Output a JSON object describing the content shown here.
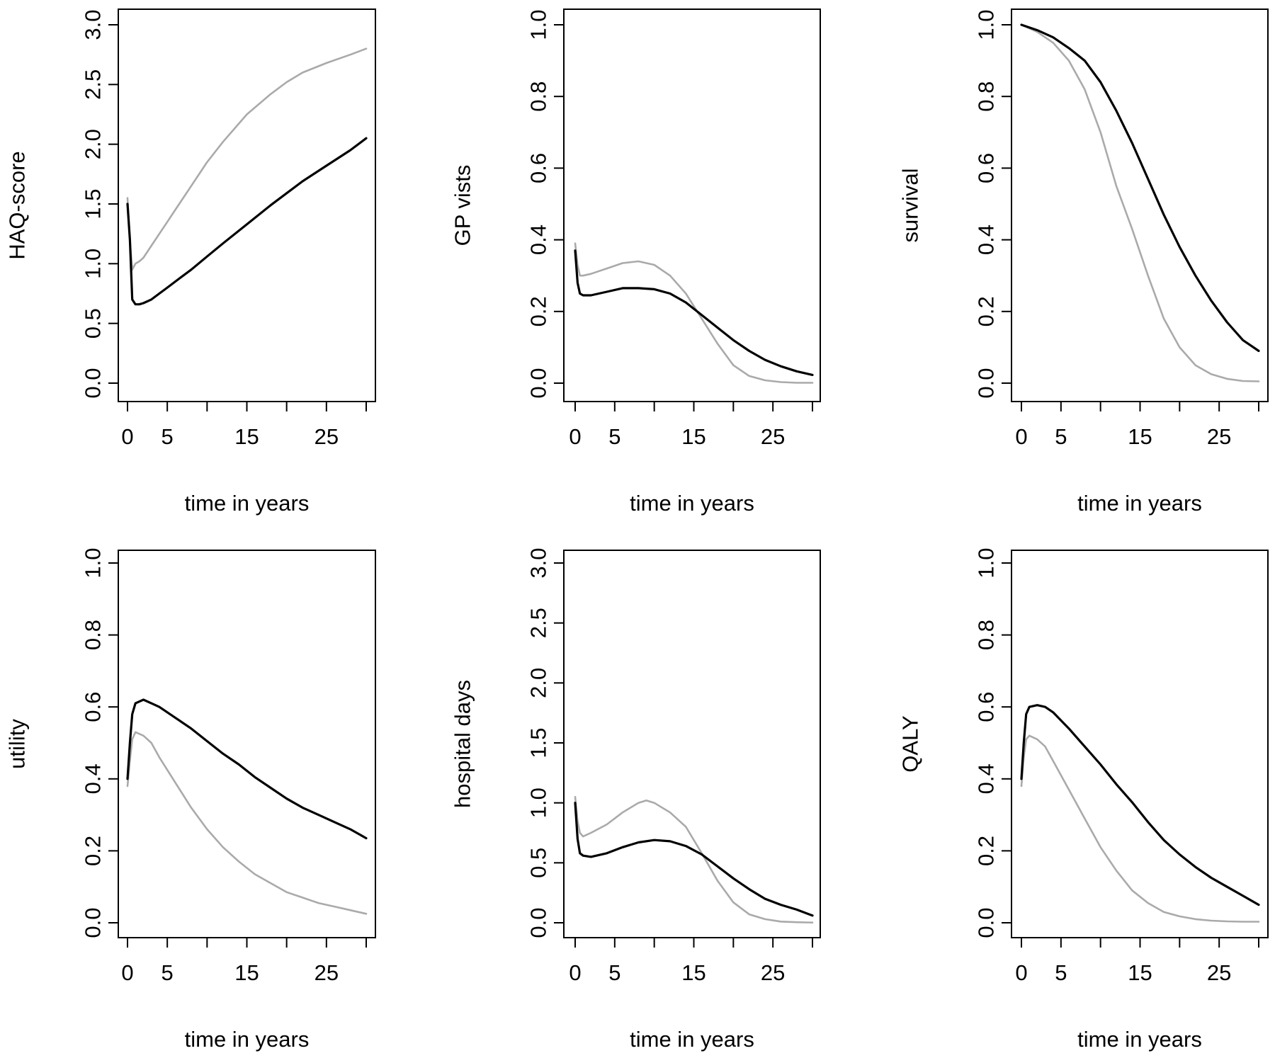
{
  "colors": {
    "series_dark": "#000000",
    "series_light": "#aaaaaa",
    "axis": "#000000",
    "background": "#ffffff"
  },
  "chart_data": [
    {
      "type": "line",
      "xlabel": "time in years",
      "ylabel": "HAQ-score",
      "xlim": [
        0,
        30
      ],
      "ylim": [
        0,
        3
      ],
      "xticks": [
        0,
        5,
        10,
        15,
        20,
        25,
        30
      ],
      "xtick_labels": [
        "0",
        "5",
        "",
        "15",
        "",
        "25",
        ""
      ],
      "yticks": [
        0,
        0.5,
        1,
        1.5,
        2,
        2.5,
        3
      ],
      "ytick_labels": [
        "0.0",
        "0.5",
        "1.0",
        "1.5",
        "2.0",
        "2.5",
        "3.0"
      ],
      "grid": false,
      "series": [
        {
          "color": "#aaaaaa",
          "x": [
            0,
            0.3,
            0.6,
            1,
            1.5,
            2,
            3,
            4,
            5,
            6,
            8,
            10,
            12,
            15,
            18,
            20,
            22,
            25,
            28,
            30
          ],
          "y": [
            1.55,
            1.2,
            0.95,
            1.0,
            1.02,
            1.05,
            1.15,
            1.25,
            1.35,
            1.45,
            1.65,
            1.85,
            2.02,
            2.25,
            2.42,
            2.52,
            2.6,
            2.68,
            2.75,
            2.8
          ]
        },
        {
          "color": "#000000",
          "x": [
            0,
            0.3,
            0.6,
            1,
            1.5,
            2,
            3,
            4,
            5,
            6,
            8,
            10,
            12,
            15,
            18,
            20,
            22,
            25,
            28,
            30
          ],
          "y": [
            1.5,
            1.2,
            0.7,
            0.66,
            0.66,
            0.67,
            0.7,
            0.75,
            0.8,
            0.85,
            0.95,
            1.06,
            1.17,
            1.33,
            1.49,
            1.59,
            1.69,
            1.82,
            1.95,
            2.05
          ]
        }
      ]
    },
    {
      "type": "line",
      "xlabel": "time in years",
      "ylabel": "GP vists",
      "xlim": [
        0,
        30
      ],
      "ylim": [
        0,
        1
      ],
      "xticks": [
        0,
        5,
        10,
        15,
        20,
        25,
        30
      ],
      "xtick_labels": [
        "0",
        "5",
        "",
        "15",
        "",
        "25",
        ""
      ],
      "yticks": [
        0,
        0.2,
        0.4,
        0.6,
        0.8,
        1
      ],
      "ytick_labels": [
        "0.0",
        "0.2",
        "0.4",
        "0.6",
        "0.8",
        "1.0"
      ],
      "grid": false,
      "series": [
        {
          "color": "#aaaaaa",
          "x": [
            0,
            0.3,
            0.6,
            1,
            2,
            4,
            6,
            8,
            10,
            12,
            14,
            16,
            18,
            20,
            22,
            24,
            26,
            28,
            30
          ],
          "y": [
            0.39,
            0.33,
            0.3,
            0.3,
            0.305,
            0.32,
            0.335,
            0.34,
            0.33,
            0.3,
            0.25,
            0.18,
            0.11,
            0.05,
            0.02,
            0.008,
            0.003,
            0.001,
            0.001
          ]
        },
        {
          "color": "#000000",
          "x": [
            0,
            0.3,
            0.6,
            1,
            2,
            4,
            6,
            8,
            10,
            12,
            14,
            16,
            18,
            20,
            22,
            24,
            26,
            28,
            30
          ],
          "y": [
            0.37,
            0.28,
            0.25,
            0.245,
            0.245,
            0.255,
            0.265,
            0.265,
            0.262,
            0.25,
            0.225,
            0.19,
            0.155,
            0.12,
            0.09,
            0.065,
            0.047,
            0.033,
            0.023
          ]
        }
      ]
    },
    {
      "type": "line",
      "xlabel": "time in years",
      "ylabel": "survival",
      "xlim": [
        0,
        30
      ],
      "ylim": [
        0,
        1
      ],
      "xticks": [
        0,
        5,
        10,
        15,
        20,
        25,
        30
      ],
      "xtick_labels": [
        "0",
        "5",
        "",
        "15",
        "",
        "25",
        ""
      ],
      "yticks": [
        0,
        0.2,
        0.4,
        0.6,
        0.8,
        1
      ],
      "ytick_labels": [
        "0.0",
        "0.2",
        "0.4",
        "0.6",
        "0.8",
        "1.0"
      ],
      "grid": false,
      "series": [
        {
          "color": "#aaaaaa",
          "x": [
            0,
            2,
            4,
            6,
            8,
            10,
            12,
            14,
            16,
            18,
            20,
            22,
            24,
            26,
            28,
            30
          ],
          "y": [
            1.0,
            0.98,
            0.95,
            0.9,
            0.82,
            0.7,
            0.55,
            0.43,
            0.3,
            0.18,
            0.1,
            0.05,
            0.025,
            0.012,
            0.006,
            0.005
          ]
        },
        {
          "color": "#000000",
          "x": [
            0,
            2,
            4,
            6,
            8,
            10,
            12,
            14,
            16,
            18,
            20,
            22,
            24,
            26,
            28,
            30
          ],
          "y": [
            1.0,
            0.985,
            0.965,
            0.935,
            0.9,
            0.84,
            0.76,
            0.67,
            0.57,
            0.47,
            0.38,
            0.3,
            0.23,
            0.17,
            0.12,
            0.09
          ]
        }
      ]
    },
    {
      "type": "line",
      "xlabel": "time in years",
      "ylabel": "utility",
      "xlim": [
        0,
        30
      ],
      "ylim": [
        0,
        1
      ],
      "xticks": [
        0,
        5,
        10,
        15,
        20,
        25,
        30
      ],
      "xtick_labels": [
        "0",
        "5",
        "",
        "15",
        "",
        "25",
        ""
      ],
      "yticks": [
        0,
        0.2,
        0.4,
        0.6,
        0.8,
        1
      ],
      "ytick_labels": [
        "0.0",
        "0.2",
        "0.4",
        "0.6",
        "0.8",
        "1.0"
      ],
      "grid": false,
      "series": [
        {
          "color": "#aaaaaa",
          "x": [
            0,
            0.3,
            0.6,
            1,
            2,
            3,
            4,
            6,
            8,
            10,
            12,
            14,
            16,
            18,
            20,
            22,
            24,
            26,
            28,
            30
          ],
          "y": [
            0.38,
            0.45,
            0.51,
            0.53,
            0.52,
            0.5,
            0.46,
            0.39,
            0.32,
            0.26,
            0.21,
            0.17,
            0.135,
            0.11,
            0.085,
            0.07,
            0.055,
            0.045,
            0.035,
            0.025
          ]
        },
        {
          "color": "#000000",
          "x": [
            0,
            0.3,
            0.6,
            1,
            2,
            3,
            4,
            6,
            8,
            10,
            12,
            14,
            16,
            18,
            20,
            22,
            24,
            26,
            28,
            30
          ],
          "y": [
            0.4,
            0.5,
            0.58,
            0.61,
            0.62,
            0.61,
            0.6,
            0.57,
            0.54,
            0.505,
            0.47,
            0.44,
            0.405,
            0.375,
            0.345,
            0.32,
            0.3,
            0.28,
            0.26,
            0.235
          ]
        }
      ]
    },
    {
      "type": "line",
      "xlabel": "time in years",
      "ylabel": "hospital days",
      "xlim": [
        0,
        30
      ],
      "ylim": [
        0,
        3
      ],
      "xticks": [
        0,
        5,
        10,
        15,
        20,
        25,
        30
      ],
      "xtick_labels": [
        "0",
        "5",
        "",
        "15",
        "",
        "25",
        ""
      ],
      "yticks": [
        0,
        0.5,
        1,
        1.5,
        2,
        2.5,
        3
      ],
      "ytick_labels": [
        "0.0",
        "0.5",
        "1.0",
        "1.5",
        "2.0",
        "2.5",
        "3.0"
      ],
      "grid": false,
      "series": [
        {
          "color": "#aaaaaa",
          "x": [
            0,
            0.3,
            0.6,
            1,
            2,
            4,
            6,
            8,
            9,
            10,
            12,
            14,
            16,
            18,
            20,
            22,
            24,
            26,
            28,
            30
          ],
          "y": [
            1.05,
            0.85,
            0.75,
            0.72,
            0.75,
            0.82,
            0.92,
            1.0,
            1.02,
            1.0,
            0.92,
            0.8,
            0.58,
            0.35,
            0.17,
            0.07,
            0.03,
            0.01,
            0.005,
            0.002
          ]
        },
        {
          "color": "#000000",
          "x": [
            0,
            0.3,
            0.6,
            1,
            2,
            4,
            6,
            8,
            10,
            12,
            14,
            16,
            18,
            20,
            22,
            24,
            26,
            28,
            30
          ],
          "y": [
            1.0,
            0.7,
            0.58,
            0.56,
            0.55,
            0.58,
            0.63,
            0.67,
            0.69,
            0.68,
            0.64,
            0.57,
            0.47,
            0.37,
            0.28,
            0.2,
            0.15,
            0.11,
            0.06
          ]
        }
      ]
    },
    {
      "type": "line",
      "xlabel": "time in years",
      "ylabel": "QALY",
      "xlim": [
        0,
        30
      ],
      "ylim": [
        0,
        1
      ],
      "xticks": [
        0,
        5,
        10,
        15,
        20,
        25,
        30
      ],
      "xtick_labels": [
        "0",
        "5",
        "",
        "15",
        "",
        "25",
        ""
      ],
      "yticks": [
        0,
        0.2,
        0.4,
        0.6,
        0.8,
        1
      ],
      "ytick_labels": [
        "0.0",
        "0.2",
        "0.4",
        "0.6",
        "0.8",
        "1.0"
      ],
      "grid": false,
      "series": [
        {
          "color": "#aaaaaa",
          "x": [
            0,
            0.3,
            0.6,
            1,
            2,
            3,
            4,
            6,
            8,
            10,
            12,
            14,
            16,
            18,
            20,
            22,
            24,
            26,
            28,
            30
          ],
          "y": [
            0.38,
            0.46,
            0.51,
            0.52,
            0.51,
            0.49,
            0.45,
            0.37,
            0.29,
            0.21,
            0.145,
            0.09,
            0.055,
            0.03,
            0.018,
            0.01,
            0.006,
            0.004,
            0.003,
            0.003
          ]
        },
        {
          "color": "#000000",
          "x": [
            0,
            0.3,
            0.6,
            1,
            2,
            3,
            4,
            6,
            8,
            10,
            12,
            14,
            16,
            18,
            20,
            22,
            24,
            26,
            28,
            30
          ],
          "y": [
            0.4,
            0.5,
            0.58,
            0.6,
            0.605,
            0.6,
            0.585,
            0.54,
            0.49,
            0.44,
            0.385,
            0.335,
            0.28,
            0.23,
            0.19,
            0.155,
            0.125,
            0.1,
            0.075,
            0.05
          ]
        }
      ]
    }
  ]
}
